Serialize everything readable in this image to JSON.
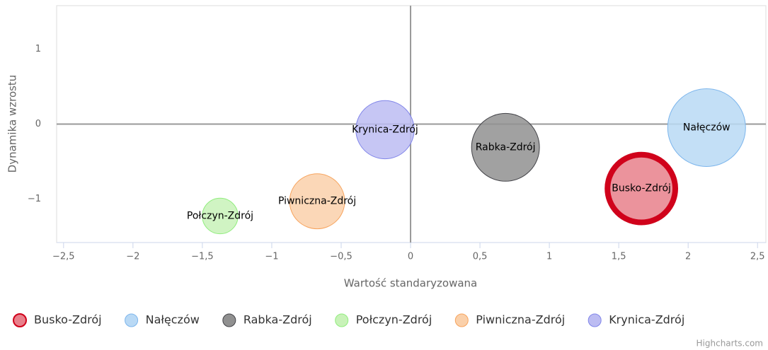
{
  "chart_data": {
    "type": "bubble",
    "xaxis_label": "Wartość standaryzowana",
    "yaxis_label": "Dynamika wzrostu",
    "credits": "Highcharts.com",
    "xlim": [
      -2.55,
      2.56
    ],
    "xticks": [
      {
        "value": -2.5,
        "label": "−2,5"
      },
      {
        "value": -2,
        "label": "−2"
      },
      {
        "value": -1.5,
        "label": "−1,5"
      },
      {
        "value": -1,
        "label": "−1"
      },
      {
        "value": -0.5,
        "label": "−0,5"
      },
      0,
      {
        "value": 0.5,
        "label": "0,5"
      },
      1,
      {
        "value": 1.5,
        "label": "1,5"
      },
      2,
      {
        "value": 2.5,
        "label": "2,5"
      }
    ],
    "ylim": [
      -1.58,
      1.58
    ],
    "yticks": [
      {
        "value": -1,
        "label": "−1"
      },
      0,
      1
    ],
    "x_plot_line": 0,
    "y_plot_line": 0,
    "legend": "bottom",
    "series": [
      {
        "name": "Busko-Zdrój",
        "color": "#e8808b",
        "line_color": "#d0021b",
        "selected": true,
        "x": [
          1.663
        ],
        "values": [
          -0.86
        ],
        "sizes": [
          89
        ]
      },
      {
        "name": "Nałęczów",
        "color": "#b9d9f5",
        "line_color": "#7cb5ec",
        "x": [
          2.133
        ],
        "values": [
          -0.047
        ],
        "sizes": [
          100
        ]
      },
      {
        "name": "Rabka-Zdrój",
        "color": "#909090",
        "line_color": "#434348",
        "x": [
          0.684
        ],
        "values": [
          -0.31
        ],
        "sizes": [
          76
        ]
      },
      {
        "name": "Połczyn-Zdrój",
        "color": "#c8f2b8",
        "line_color": "#90ed7d",
        "x": [
          -1.372
        ],
        "values": [
          -1.226
        ],
        "sizes": [
          21
        ]
      },
      {
        "name": "Piwniczna-Zdrój",
        "color": "#fad0aa",
        "line_color": "#f7a35c",
        "x": [
          -0.673
        ],
        "values": [
          -1.03
        ],
        "sizes": [
          50
        ]
      },
      {
        "name": "Krynica-Zdrój",
        "color": "#bcbcf2",
        "line_color": "#8085e9",
        "x": [
          -0.184
        ],
        "values": [
          -0.075
        ],
        "sizes": [
          56
        ]
      }
    ]
  }
}
